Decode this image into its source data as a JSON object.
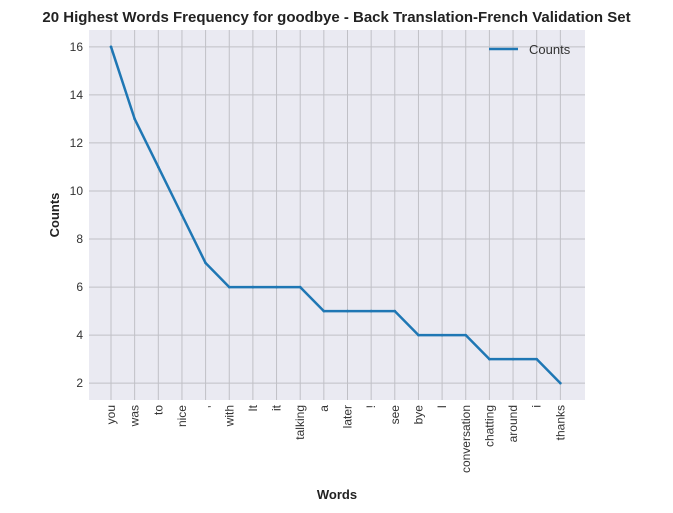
{
  "chart_data": {
    "type": "line",
    "title": "20 Highest Words Frequency for goodbye - Back Translation-French Validation Set",
    "xlabel": "Words",
    "ylabel": "Counts",
    "categories": [
      "you",
      "was",
      "to",
      "nice",
      ",",
      "with",
      "It",
      "it",
      "talking",
      "a",
      "later",
      "!",
      "see",
      "bye",
      "I",
      "conversation",
      "chatting",
      "around",
      "i",
      "thanks"
    ],
    "series": [
      {
        "name": "Counts",
        "values": [
          16,
          13,
          11,
          9,
          7,
          6,
          6,
          6,
          6,
          5,
          5,
          5,
          5,
          4,
          4,
          4,
          3,
          3,
          3,
          2
        ],
        "color": "#1f77b4"
      }
    ],
    "ylim": [
      1.3,
      16.7
    ],
    "yticks": [
      2,
      4,
      6,
      8,
      10,
      12,
      14,
      16
    ],
    "grid": true,
    "legend": "top-right",
    "background": "#eaeaf2",
    "grid_color": "#c0c0c6"
  }
}
